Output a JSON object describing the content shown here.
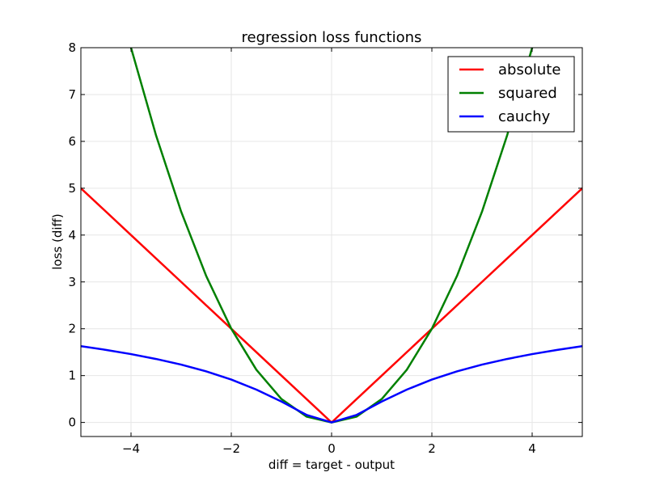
{
  "chart_data": {
    "type": "line",
    "title": "regression loss functions",
    "xlabel": "diff = target - output",
    "ylabel": "loss (diff)",
    "xlim": [
      -5,
      5
    ],
    "ylim": [
      -0.3,
      8
    ],
    "xticks": [
      -4,
      -2,
      0,
      2,
      4
    ],
    "xtick_labels": [
      "−4",
      "−2",
      "0",
      "2",
      "4"
    ],
    "yticks": [
      0,
      1,
      2,
      3,
      4,
      5,
      6,
      7,
      8
    ],
    "ytick_labels": [
      "0",
      "1",
      "2",
      "3",
      "4",
      "5",
      "6",
      "7",
      "8"
    ],
    "grid": true,
    "legend_position": "top-right",
    "series": [
      {
        "name": "absolute",
        "color": "#ff0000",
        "x": [
          -5,
          -4,
          -3,
          -2,
          -1,
          0,
          1,
          2,
          3,
          4,
          5
        ],
        "y": [
          5,
          4,
          3,
          2,
          1,
          0,
          1,
          2,
          3,
          4,
          5
        ]
      },
      {
        "name": "squared",
        "color": "#008000",
        "x": [
          -4.0,
          -3.5,
          -3.0,
          -2.5,
          -2.0,
          -1.5,
          -1.0,
          -0.5,
          0,
          0.5,
          1.0,
          1.5,
          2.0,
          2.5,
          3.0,
          3.5,
          4.0
        ],
        "y": [
          8.0,
          6.125,
          4.5,
          3.125,
          2.0,
          1.125,
          0.5,
          0.125,
          0,
          0.125,
          0.5,
          1.125,
          2.0,
          3.125,
          4.5,
          6.125,
          8.0
        ]
      },
      {
        "name": "cauchy",
        "color": "#0000ff",
        "x": [
          -5.0,
          -4.5,
          -4.0,
          -3.5,
          -3.0,
          -2.5,
          -2.0,
          -1.5,
          -1.0,
          -0.5,
          0,
          0.5,
          1.0,
          1.5,
          2.0,
          2.5,
          3.0,
          3.5,
          4.0,
          4.5,
          5.0
        ],
        "y": [
          1.629,
          1.549,
          1.459,
          1.355,
          1.235,
          1.09,
          0.916,
          0.701,
          0.446,
          0.161,
          0,
          0.161,
          0.446,
          0.701,
          0.916,
          1.09,
          1.235,
          1.355,
          1.459,
          1.549,
          1.629
        ]
      }
    ]
  }
}
